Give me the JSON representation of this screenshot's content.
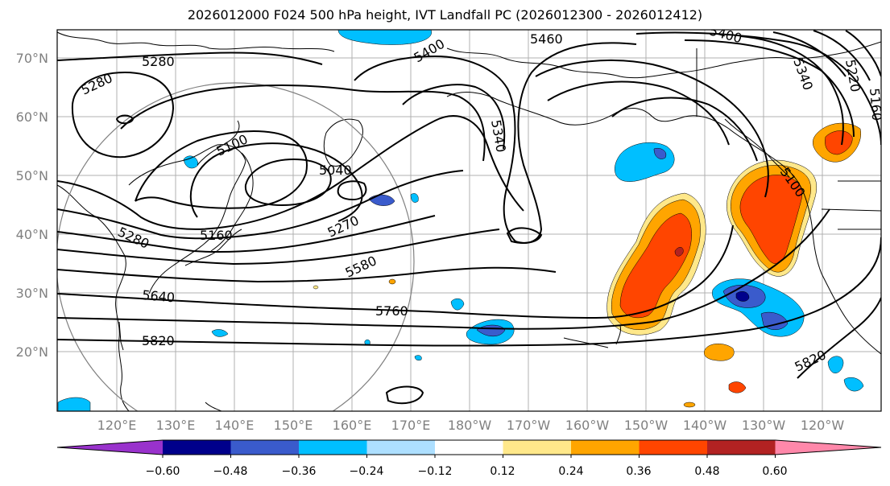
{
  "title": "2026012000 F024 500 hPa height, IVT Landfall PC (2026012300 - 2026012412)",
  "lat_labels": [
    "70°N",
    "60°N",
    "50°N",
    "40°N",
    "30°N",
    "20°N"
  ],
  "lon_labels": [
    "120°E",
    "130°E",
    "140°E",
    "150°E",
    "160°E",
    "170°E",
    "180°W",
    "170°W",
    "160°W",
    "150°W",
    "140°W",
    "130°W",
    "120°W"
  ],
  "contour_labels": [
    "5280",
    "5280",
    "5400",
    "5460",
    "5400",
    "5100",
    "5040",
    "5340",
    "5270",
    "5160",
    "5280",
    "5580",
    "5640",
    "5760",
    "5820",
    "5820",
    "5100",
    "5340",
    "5220",
    "5160"
  ],
  "colorbar": {
    "ticks": [
      "−0.60",
      "−0.48",
      "−0.36",
      "−0.24",
      "−0.12",
      "0.12",
      "0.24",
      "0.36",
      "0.48",
      "0.60"
    ],
    "colors": [
      "#9932CC",
      "#00008B",
      "#3A5BCC",
      "#00BFFF",
      "#ADDFFF",
      "#FFFFFF",
      "#FFE88A",
      "#FFA500",
      "#FF4500",
      "#B22222",
      "#FF88AA"
    ]
  }
}
